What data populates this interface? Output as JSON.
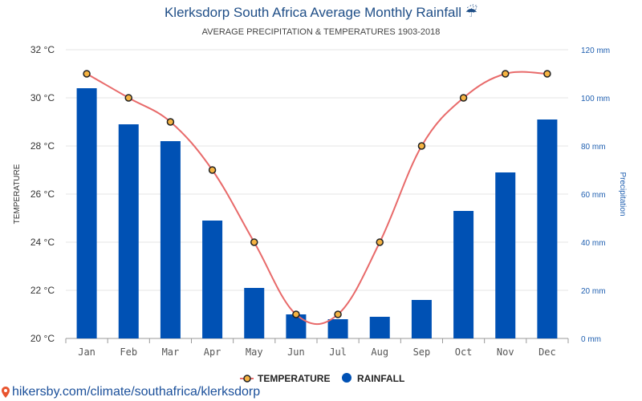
{
  "title": "Klerksdorp South Africa Average Monthly Rainfall ☔",
  "subtitle": "AVERAGE PRECIPITATION & TEMPERATURES 1903-2018",
  "footer_url": "hikersby.com/climate/southafrica/klerksdorp",
  "colors": {
    "bar": "#0051b4",
    "line": "#e86a6a",
    "marker_fill": "#f5b342",
    "marker_stroke": "#222222",
    "title": "#1f4e87",
    "right_axis": "#1f5fb0"
  },
  "chart_data": {
    "type": "bar",
    "categories": [
      "Jan",
      "Feb",
      "Mar",
      "Apr",
      "May",
      "Jun",
      "Jul",
      "Aug",
      "Sep",
      "Oct",
      "Nov",
      "Dec"
    ],
    "series": [
      {
        "name": "TEMPERATURE",
        "type": "line",
        "axis": "left",
        "values": [
          31,
          30,
          29,
          27,
          24,
          21,
          21,
          24,
          28,
          30,
          31,
          31
        ]
      },
      {
        "name": "RAINFALL",
        "type": "bar",
        "axis": "right",
        "values": [
          104,
          89,
          82,
          49,
          21,
          10,
          8,
          9,
          16,
          53,
          69,
          91
        ]
      }
    ],
    "y_left": {
      "label": "TEMPERATURE",
      "lim": [
        20,
        32
      ],
      "ticks": [
        "20 °C",
        "22 °C",
        "24 °C",
        "26 °C",
        "28 °C",
        "30 °C",
        "32 °C"
      ]
    },
    "y_right": {
      "label": "Precipitation",
      "lim": [
        0,
        120
      ],
      "ticks": [
        "0 mm",
        "20 mm",
        "40 mm",
        "60 mm",
        "80 mm",
        "100 mm",
        "120 mm"
      ]
    },
    "legend": {
      "placement": "bottom",
      "entries": [
        "TEMPERATURE",
        "RAINFALL"
      ]
    },
    "grid": true
  }
}
